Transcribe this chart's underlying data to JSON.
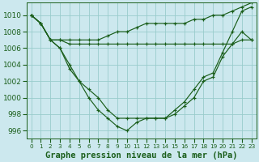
{
  "background_color": "#cce8ee",
  "grid_color": "#99cccc",
  "line_color": "#1a5e1a",
  "marker_color": "#1a5e1a",
  "xlabel": "Graphe pression niveau de la mer (hPa)",
  "xlabel_fontsize": 7.5,
  "xlabel_color": "#1a5e1a",
  "ylabel_fontsize": 6.5,
  "tick_color": "#1a5e1a",
  "ylim": [
    995.0,
    1011.5
  ],
  "yticks": [
    996,
    998,
    1000,
    1002,
    1004,
    1006,
    1008,
    1010
  ],
  "xlim": [
    -0.5,
    23.5
  ],
  "xticks": [
    0,
    1,
    2,
    3,
    4,
    5,
    6,
    7,
    8,
    9,
    10,
    11,
    12,
    13,
    14,
    15,
    16,
    17,
    18,
    19,
    20,
    21,
    22,
    23
  ],
  "series": [
    [
      1010,
      1009,
      1007,
      1007,
      1007,
      1007,
      1007,
      1007,
      1007.5,
      1008,
      1008,
      1008.5,
      1009,
      1009,
      1009,
      1009,
      1009,
      1009.5,
      1009.5,
      1010,
      1010,
      1010.5,
      1011,
      1011.5
    ],
    [
      1010,
      1009,
      1007,
      1007,
      1006.5,
      1006.5,
      1006.5,
      1006.5,
      1006.5,
      1006.5,
      1006.5,
      1006.5,
      1006.5,
      1006.5,
      1006.5,
      1006.5,
      1006.5,
      1006.5,
      1006.5,
      1006.5,
      1006.5,
      1006.5,
      1007,
      1007
    ],
    [
      1010,
      1009,
      1007,
      1006,
      1004,
      1002,
      1001,
      1000,
      998.5,
      997.5,
      997.5,
      997.5,
      997.5,
      997.5,
      997.5,
      998,
      999,
      1000,
      1002,
      1002.5,
      1005,
      1006.5,
      1008,
      1007
    ],
    [
      1010,
      1009,
      1007,
      1006,
      1003.5,
      1002,
      1000,
      998.5,
      997.5,
      996.5,
      996,
      997,
      997.5,
      997.5,
      997.5,
      998.5,
      999.5,
      1001,
      1002.5,
      1003,
      1005.5,
      1008,
      1010.5,
      1011
    ]
  ]
}
